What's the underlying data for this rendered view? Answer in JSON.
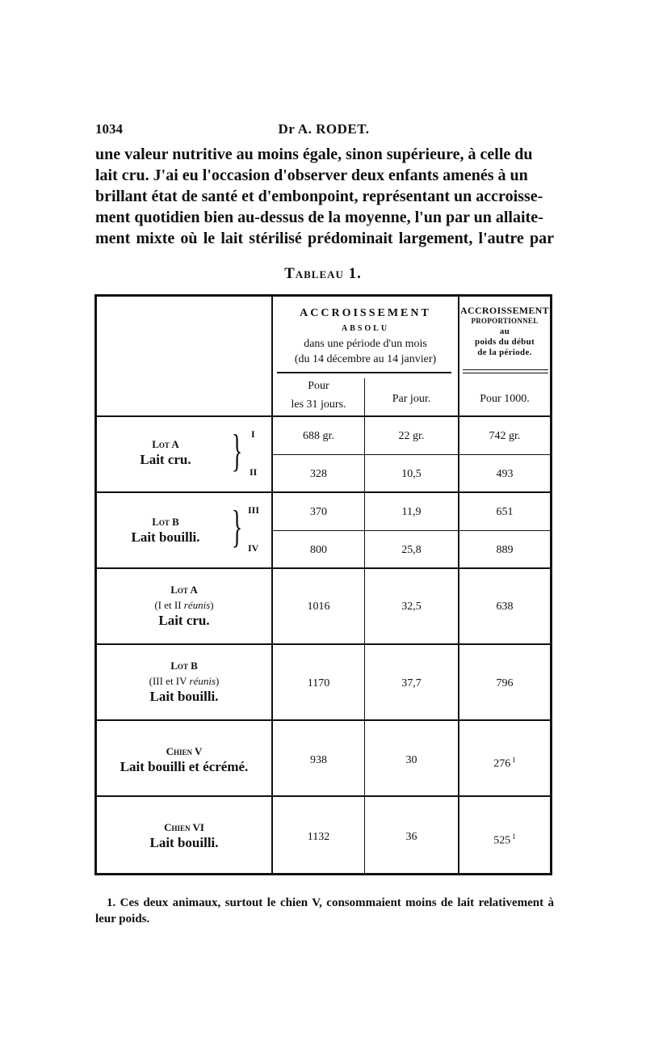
{
  "header": {
    "page_number": "1034",
    "author": "Dr A. RODET."
  },
  "body_lines": [
    "une valeur nutritive au moins égale, sinon supérieure, à celle du",
    "lait cru. J'ai eu l'occasion d'observer deux enfants amenés à un",
    "brillant état de santé et d'embonpoint, représentant un accroisse-",
    "ment quotidien bien au-dessus de la moyenne, l'un par un allaite-",
    "ment mixte où le lait stérilisé prédominait largement, l'autre par"
  ],
  "table": {
    "title": "Tableau 1.",
    "header_absolu": {
      "line1": "ACCROISSEMENT",
      "line2": "ABSOLU",
      "line3": "dans une période d'un mois",
      "line4": "(du 14 décembre au 14 janvier)",
      "col1_a": "Pour",
      "col1_b": "les 31 jours.",
      "col2": "Par jour."
    },
    "header_prop": {
      "line1": "ACCROISSEMENT",
      "line2": "PROPORTIONNEL",
      "line3": "au",
      "line4": "poids du début",
      "line5": "de la période.",
      "col": "Pour 1000."
    },
    "lot_a": {
      "name": "Lot A",
      "desc": "Lait cru.",
      "rows": [
        {
          "id": "I",
          "total": "688 gr.",
          "per_day": "22 gr.",
          "per_1000": "742 gr."
        },
        {
          "id": "II",
          "total": "328",
          "per_day": "10,5",
          "per_1000": "493"
        }
      ]
    },
    "lot_b": {
      "name": "Lot B",
      "desc": "Lait bouilli.",
      "rows": [
        {
          "id": "III",
          "total": "370",
          "per_day": "11,9",
          "per_1000": "651"
        },
        {
          "id": "IV",
          "total": "800",
          "per_day": "25,8",
          "per_1000": "889"
        }
      ]
    },
    "lot_a_union": {
      "name": "Lot A",
      "group_prefix": "(I et II ",
      "group_italic": "réunis",
      "group_suffix": ")",
      "desc": "Lait cru.",
      "total": "1016",
      "per_day": "32,5",
      "per_1000": "638"
    },
    "lot_b_union": {
      "name": "Lot B",
      "group_prefix": "(III et IV ",
      "group_italic": "réunis",
      "group_suffix": ")",
      "desc": "Lait bouilli.",
      "total": "1170",
      "per_day": "37,7",
      "per_1000": "796"
    },
    "chien_v": {
      "name": "Chien V",
      "desc": "Lait bouilli et écrémé.",
      "total": "938",
      "per_day": "30",
      "per_1000": "276",
      "note": "1"
    },
    "chien_vi": {
      "name": "Chien VI",
      "desc": "Lait bouilli.",
      "total": "1132",
      "per_day": "36",
      "per_1000": "525",
      "note": "1"
    }
  },
  "footnote": {
    "marker": "1.",
    "text": "Ces deux animaux, surtout le chien V, consommaient moins de lait relativement à leur poids."
  }
}
